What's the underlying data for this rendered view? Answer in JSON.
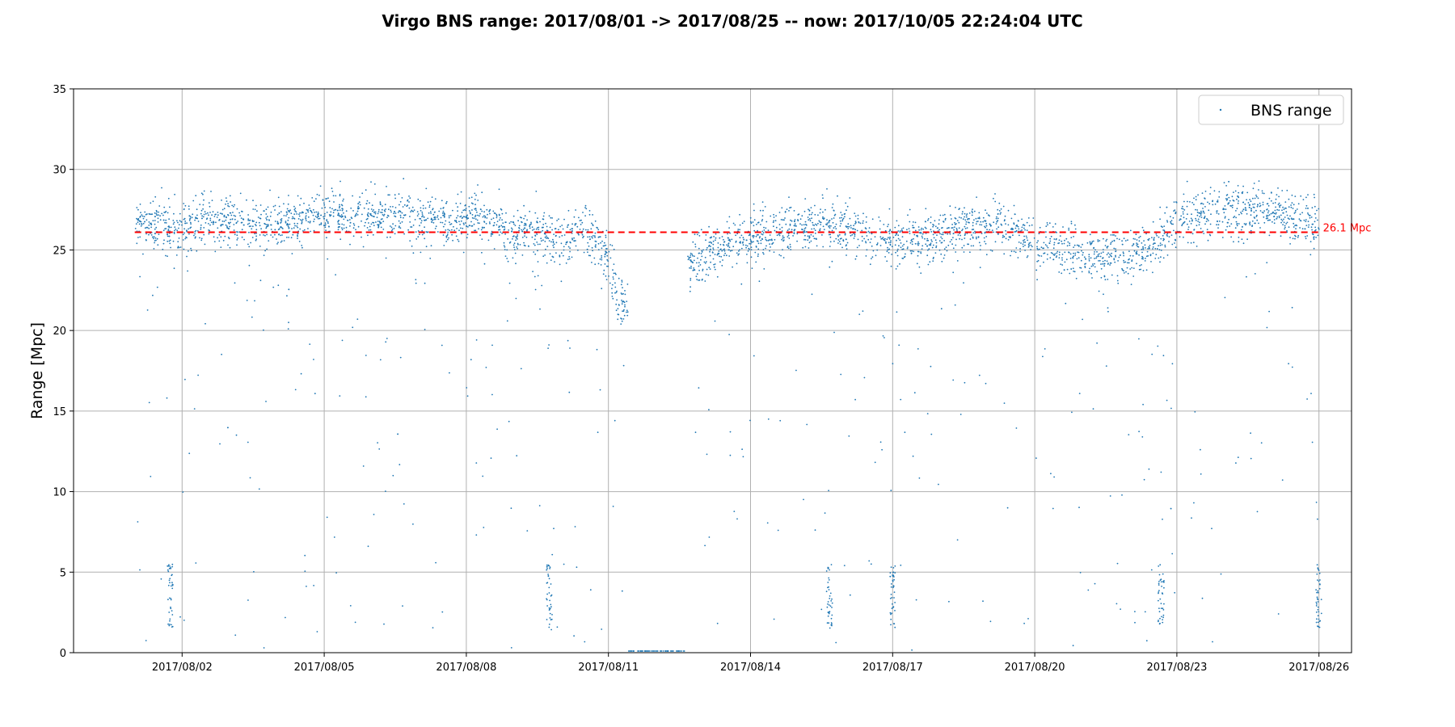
{
  "chart_data": {
    "type": "scatter",
    "title": "Virgo BNS range: 2017/08/01 -> 2017/08/25 -- now: 2017/10/05 22:24:04 UTC",
    "xlabel": "",
    "ylabel": "Range [Mpc]",
    "x_ticks": [
      "2017/08/02",
      "2017/08/05",
      "2017/08/08",
      "2017/08/11",
      "2017/08/14",
      "2017/08/17",
      "2017/08/20",
      "2017/08/23",
      "2017/08/26"
    ],
    "xlim": [
      "2017-07-30T17:00",
      "2017-08-26T16:30"
    ],
    "x_data_range": [
      "2017-08-01T00:00",
      "2017-08-25T23:59"
    ],
    "ylim": [
      0,
      35
    ],
    "y_ticks": [
      0,
      5,
      10,
      15,
      20,
      25,
      30,
      35
    ],
    "grid": true,
    "legend": {
      "position": "top-right",
      "entries": [
        "BNS range"
      ]
    },
    "series": [
      {
        "name": "BNS range",
        "color": "#1f77b4",
        "marker": "point",
        "profile": [
          {
            "x": "2017-08-01T00:00",
            "y": 26.8
          },
          {
            "x": "2017-08-01T18:00",
            "y": 26.3
          },
          {
            "x": "2017-08-02T12:00",
            "y": 26.8
          },
          {
            "x": "2017-08-04T00:00",
            "y": 26.5
          },
          {
            "x": "2017-08-05T00:00",
            "y": 27.3
          },
          {
            "x": "2017-08-06T12:00",
            "y": 27.1
          },
          {
            "x": "2017-08-07T12:00",
            "y": 26.6
          },
          {
            "x": "2017-08-08T06:00",
            "y": 27.0
          },
          {
            "x": "2017-08-09T00:00",
            "y": 25.8
          },
          {
            "x": "2017-08-09T12:00",
            "y": 26.2
          },
          {
            "x": "2017-08-10T00:00",
            "y": 25.3
          },
          {
            "x": "2017-08-10T12:00",
            "y": 26.1
          },
          {
            "x": "2017-08-11T00:00",
            "y": 24.5
          },
          {
            "x": "2017-08-11T06:00",
            "y": 21.5
          },
          {
            "x": "2017-08-12T16:00",
            "y": 24.0
          },
          {
            "x": "2017-08-13T12:00",
            "y": 25.5
          },
          {
            "x": "2017-08-14T12:00",
            "y": 26.0
          },
          {
            "x": "2017-08-15T12:00",
            "y": 26.6
          },
          {
            "x": "2017-08-16T12:00",
            "y": 25.8
          },
          {
            "x": "2017-08-17T12:00",
            "y": 25.7
          },
          {
            "x": "2017-08-18T12:00",
            "y": 26.2
          },
          {
            "x": "2017-08-19T06:00",
            "y": 26.6
          },
          {
            "x": "2017-08-20T00:00",
            "y": 25.5
          },
          {
            "x": "2017-08-20T18:00",
            "y": 24.9
          },
          {
            "x": "2017-08-21T12:00",
            "y": 24.5
          },
          {
            "x": "2017-08-22T12:00",
            "y": 24.9
          },
          {
            "x": "2017-08-23T00:00",
            "y": 27.0
          },
          {
            "x": "2017-08-24T06:00",
            "y": 27.4
          },
          {
            "x": "2017-08-25T00:00",
            "y": 27.4
          },
          {
            "x": "2017-08-25T23:00",
            "y": 26.6
          }
        ],
        "gaps": [
          {
            "start": "2017-08-11T10:00",
            "end": "2017-08-12T16:00"
          }
        ],
        "dropouts_to_5": [
          "2017-08-01T18:00",
          "2017-08-09T18:00",
          "2017-08-15T16:00",
          "2017-08-17T00:00",
          "2017-08-22T16:00",
          "2017-08-26T00:00"
        ]
      }
    ],
    "reference_line": {
      "y": 26.1,
      "label": "26.1 Mpc",
      "color": "#ff0000",
      "style": "dashed",
      "x_range": [
        "2017-08-01T00:00",
        "2017-08-25T23:59"
      ]
    }
  }
}
